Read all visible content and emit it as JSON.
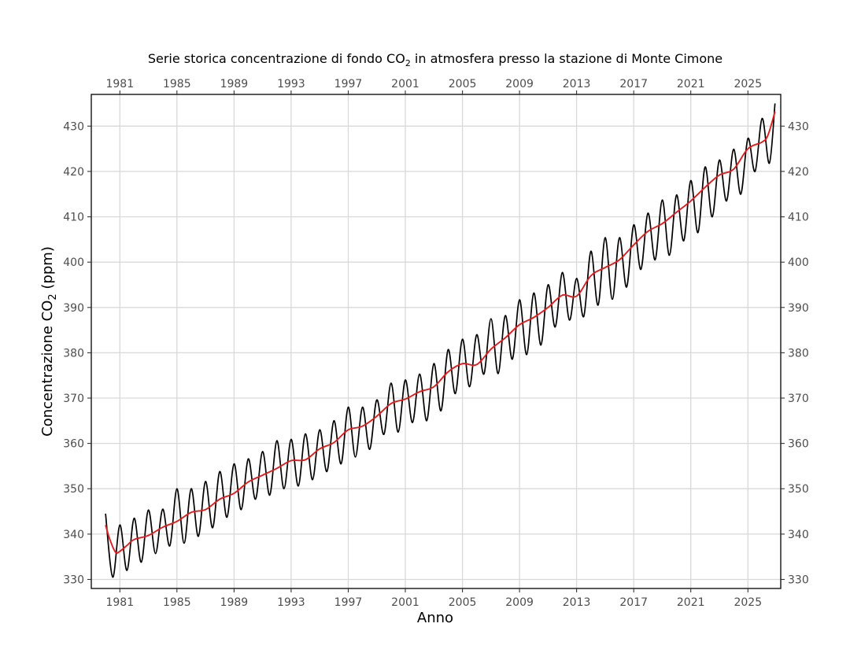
{
  "chart_data": {
    "type": "line",
    "title": "Serie storica concentrazione di fondo CO2 in atmosfera presso la stazione di Monte Cimone",
    "title_parts": {
      "pre": "Serie storica concentrazione di fondo CO",
      "sub": "2",
      "post": " in atmosfera presso la stazione di Monte Cimone"
    },
    "xlabel": "Anno",
    "ylabel": "Concentrazione CO2 (ppm)",
    "ylabel_parts": {
      "pre": "Concentrazione CO",
      "sub": "2",
      "post": " (ppm)"
    },
    "xlim": [
      1979.0,
      2027.3
    ],
    "ylim": [
      328,
      437
    ],
    "x_ticks": [
      1981,
      1985,
      1989,
      1993,
      1997,
      2001,
      2005,
      2009,
      2013,
      2017,
      2021,
      2025
    ],
    "y_ticks": [
      330,
      340,
      350,
      360,
      370,
      380,
      390,
      400,
      410,
      420,
      430
    ],
    "grid": true,
    "secondary_axes": true,
    "series": [
      {
        "color": "#000000",
        "style": "monthly seasonal cycle",
        "points": [
          [
            1980.0,
            344.5
          ],
          [
            1980.5,
            330.5
          ],
          [
            1981.0,
            342.0
          ],
          [
            1981.5,
            332.0
          ],
          [
            1982.0,
            343.5
          ],
          [
            1982.5,
            333.8
          ],
          [
            1983.0,
            345.3
          ],
          [
            1983.5,
            335.7
          ],
          [
            1984.0,
            345.5
          ],
          [
            1984.5,
            337.4
          ],
          [
            1985.0,
            350.0
          ],
          [
            1985.5,
            338.0
          ],
          [
            1986.0,
            350.0
          ],
          [
            1986.5,
            339.5
          ],
          [
            1987.0,
            351.6
          ],
          [
            1987.5,
            341.4
          ],
          [
            1988.0,
            353.8
          ],
          [
            1988.5,
            343.7
          ],
          [
            1989.0,
            355.5
          ],
          [
            1989.5,
            345.4
          ],
          [
            1990.0,
            356.6
          ],
          [
            1990.5,
            347.7
          ],
          [
            1991.0,
            358.2
          ],
          [
            1991.5,
            348.6
          ],
          [
            1992.0,
            360.6
          ],
          [
            1992.5,
            350.0
          ],
          [
            1993.0,
            360.9
          ],
          [
            1993.5,
            350.6
          ],
          [
            1994.0,
            362.1
          ],
          [
            1994.5,
            352.0
          ],
          [
            1995.0,
            363.0
          ],
          [
            1995.5,
            353.8
          ],
          [
            1996.0,
            365.0
          ],
          [
            1996.5,
            355.5
          ],
          [
            1997.0,
            368.0
          ],
          [
            1997.5,
            357.0
          ],
          [
            1998.0,
            368.0
          ],
          [
            1998.5,
            358.7
          ],
          [
            1999.0,
            369.6
          ],
          [
            1999.5,
            362.0
          ],
          [
            2000.0,
            373.3
          ],
          [
            2000.5,
            362.5
          ],
          [
            2001.0,
            374.0
          ],
          [
            2001.5,
            364.6
          ],
          [
            2002.0,
            375.3
          ],
          [
            2002.5,
            365.0
          ],
          [
            2003.0,
            377.6
          ],
          [
            2003.5,
            367.2
          ],
          [
            2004.0,
            380.7
          ],
          [
            2004.5,
            371.0
          ],
          [
            2005.0,
            383.0
          ],
          [
            2005.5,
            372.5
          ],
          [
            2006.0,
            384.0
          ],
          [
            2006.5,
            375.3
          ],
          [
            2007.0,
            387.5
          ],
          [
            2007.5,
            375.4
          ],
          [
            2008.0,
            388.2
          ],
          [
            2008.5,
            378.6
          ],
          [
            2009.0,
            391.7
          ],
          [
            2009.5,
            379.6
          ],
          [
            2010.0,
            393.2
          ],
          [
            2010.5,
            381.7
          ],
          [
            2011.0,
            395.0
          ],
          [
            2011.5,
            385.7
          ],
          [
            2012.0,
            397.7
          ],
          [
            2012.5,
            387.2
          ],
          [
            2013.0,
            396.4
          ],
          [
            2013.5,
            388.0
          ],
          [
            2014.0,
            402.4
          ],
          [
            2014.5,
            390.5
          ],
          [
            2015.0,
            405.4
          ],
          [
            2015.5,
            391.8
          ],
          [
            2016.0,
            405.4
          ],
          [
            2016.5,
            394.5
          ],
          [
            2017.0,
            408.2
          ],
          [
            2017.5,
            398.4
          ],
          [
            2018.0,
            410.8
          ],
          [
            2018.5,
            400.5
          ],
          [
            2019.0,
            413.7
          ],
          [
            2019.5,
            401.5
          ],
          [
            2020.0,
            414.8
          ],
          [
            2020.5,
            404.7
          ],
          [
            2021.0,
            418.0
          ],
          [
            2021.5,
            406.5
          ],
          [
            2022.0,
            421.0
          ],
          [
            2022.5,
            410.0
          ],
          [
            2023.0,
            422.5
          ],
          [
            2023.5,
            413.5
          ],
          [
            2024.0,
            424.9
          ],
          [
            2024.5,
            415.0
          ],
          [
            2025.0,
            427.3
          ],
          [
            2025.5,
            420.0
          ],
          [
            2026.0,
            431.7
          ],
          [
            2026.5,
            421.8
          ],
          [
            2026.9,
            435.0
          ]
        ]
      },
      {
        "color": "#e41a1c",
        "style": "deseasonalized trend",
        "points": [
          [
            1980.0,
            342.0
          ],
          [
            1980.3,
            338.8
          ],
          [
            1980.7,
            336.0
          ],
          [
            1981.0,
            336.2
          ],
          [
            1981.5,
            337.5
          ],
          [
            1982.0,
            338.8
          ],
          [
            1983.0,
            339.7
          ],
          [
            1984.0,
            341.5
          ],
          [
            1985.0,
            342.8
          ],
          [
            1986.0,
            344.8
          ],
          [
            1987.0,
            345.4
          ],
          [
            1988.0,
            347.7
          ],
          [
            1989.0,
            349.0
          ],
          [
            1990.0,
            351.5
          ],
          [
            1991.0,
            353.0
          ],
          [
            1992.0,
            354.5
          ],
          [
            1993.0,
            356.2
          ],
          [
            1994.0,
            356.4
          ],
          [
            1995.0,
            358.8
          ],
          [
            1996.0,
            360.2
          ],
          [
            1997.0,
            363.0
          ],
          [
            1998.0,
            363.8
          ],
          [
            1999.0,
            366.0
          ],
          [
            2000.0,
            368.8
          ],
          [
            2001.0,
            369.8
          ],
          [
            2002.0,
            371.4
          ],
          [
            2003.0,
            372.5
          ],
          [
            2004.0,
            375.8
          ],
          [
            2005.0,
            377.6
          ],
          [
            2006.0,
            377.4
          ],
          [
            2007.0,
            380.8
          ],
          [
            2008.0,
            383.3
          ],
          [
            2009.0,
            386.2
          ],
          [
            2010.0,
            387.8
          ],
          [
            2011.0,
            390.0
          ],
          [
            2012.0,
            392.7
          ],
          [
            2013.0,
            392.5
          ],
          [
            2014.0,
            397.0
          ],
          [
            2015.0,
            398.8
          ],
          [
            2016.0,
            400.5
          ],
          [
            2017.0,
            403.8
          ],
          [
            2018.0,
            406.8
          ],
          [
            2019.0,
            408.5
          ],
          [
            2020.0,
            411.0
          ],
          [
            2021.0,
            413.5
          ],
          [
            2022.0,
            416.5
          ],
          [
            2023.0,
            419.2
          ],
          [
            2024.0,
            420.5
          ],
          [
            2025.0,
            425.0
          ],
          [
            2026.0,
            426.5
          ],
          [
            2026.4,
            428.0
          ],
          [
            2026.9,
            433.2
          ]
        ]
      }
    ]
  }
}
